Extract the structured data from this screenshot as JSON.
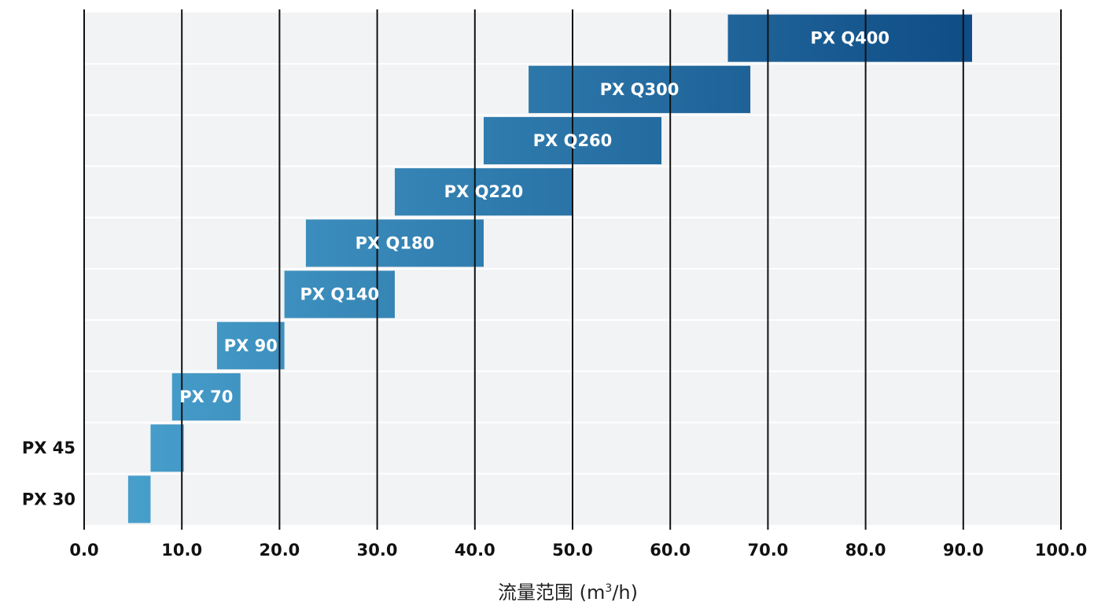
{
  "colors": {
    "plot_background": "#f2f3f5",
    "row_divider": "#ffffff",
    "gridline": "#111111",
    "bar_light": "#4aa3cf",
    "bar_dark": "#0f4c85",
    "bar_text": "#ffffff",
    "axis_text": "#111111"
  },
  "chart_data": {
    "type": "bar",
    "orientation": "horizontal-range",
    "xlabel_text": "流量范围 (m",
    "xlabel_sup": "3",
    "xlabel_tail": "/h)",
    "xlim": [
      0,
      100
    ],
    "xticks": [
      "0.0",
      "10.0",
      "20.0",
      "30.0",
      "40.0",
      "50.0",
      "60.0",
      "70.0",
      "80.0",
      "90.0",
      "100.0"
    ],
    "grid": true,
    "series": [
      {
        "name": "PX 30",
        "start": 4.5,
        "end": 6.8,
        "label_position": "outside"
      },
      {
        "name": "PX 45",
        "start": 6.8,
        "end": 10.2,
        "label_position": "outside"
      },
      {
        "name": "PX 70",
        "start": 9.0,
        "end": 16.0,
        "label_position": "inside"
      },
      {
        "name": "PX 90",
        "start": 13.6,
        "end": 20.5,
        "label_position": "inside"
      },
      {
        "name": "PX Q140",
        "start": 20.5,
        "end": 31.8,
        "label_position": "inside"
      },
      {
        "name": "PX Q180",
        "start": 22.7,
        "end": 40.9,
        "label_position": "inside"
      },
      {
        "name": "PX Q220",
        "start": 31.8,
        "end": 50.0,
        "label_position": "inside"
      },
      {
        "name": "PX Q260",
        "start": 40.9,
        "end": 59.1,
        "label_position": "inside"
      },
      {
        "name": "PX Q300",
        "start": 45.5,
        "end": 68.2,
        "label_position": "inside"
      },
      {
        "name": "PX Q400",
        "start": 65.9,
        "end": 90.9,
        "label_position": "inside"
      }
    ]
  }
}
